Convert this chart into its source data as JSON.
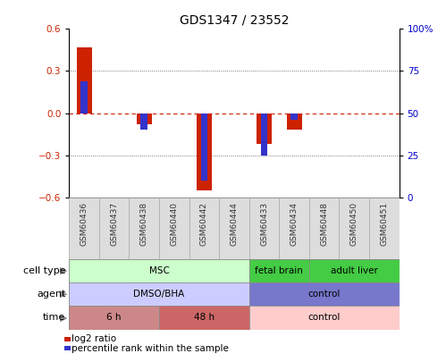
{
  "title": "GDS1347 / 23552",
  "samples": [
    "GSM60436",
    "GSM60437",
    "GSM60438",
    "GSM60440",
    "GSM60442",
    "GSM60444",
    "GSM60433",
    "GSM60434",
    "GSM60448",
    "GSM60450",
    "GSM60451"
  ],
  "log2_ratio": [
    0.47,
    0.0,
    -0.08,
    0.0,
    -0.55,
    0.0,
    -0.22,
    -0.12,
    0.0,
    0.0,
    0.0
  ],
  "percentile_rank_raw": [
    69,
    50,
    40,
    50,
    10,
    50,
    25,
    46,
    50,
    50,
    50
  ],
  "ylim": [
    -0.6,
    0.6
  ],
  "yticks_left": [
    -0.6,
    -0.3,
    0.0,
    0.3,
    0.6
  ],
  "yticks_right": [
    0,
    25,
    50,
    75,
    100
  ],
  "bar_color_red": "#cc2200",
  "bar_color_blue": "#3333cc",
  "zero_line_color": "#cc2200",
  "dotted_line_color": "#555555",
  "cell_type_groups": [
    {
      "label": "MSC",
      "start": 0,
      "end": 5,
      "color": "#ccffcc"
    },
    {
      "label": "fetal brain",
      "start": 6,
      "end": 7,
      "color": "#44cc44"
    },
    {
      "label": "adult liver",
      "start": 8,
      "end": 10,
      "color": "#44cc44"
    }
  ],
  "agent_groups": [
    {
      "label": "DMSO/BHA",
      "start": 0,
      "end": 5,
      "color": "#ccccff"
    },
    {
      "label": "control",
      "start": 6,
      "end": 10,
      "color": "#7777cc"
    }
  ],
  "time_groups": [
    {
      "label": "6 h",
      "start": 0,
      "end": 2,
      "color": "#cc8888"
    },
    {
      "label": "48 h",
      "start": 3,
      "end": 5,
      "color": "#cc6666"
    },
    {
      "label": "control",
      "start": 6,
      "end": 10,
      "color": "#ffcccc"
    }
  ],
  "row_labels": [
    "cell type",
    "agent",
    "time"
  ],
  "background_color": "#ffffff",
  "axis_label_color_left": "#cc2200",
  "axis_label_color_right": "#0000cc",
  "sample_box_color": "#dddddd",
  "sample_box_edge": "#aaaaaa"
}
